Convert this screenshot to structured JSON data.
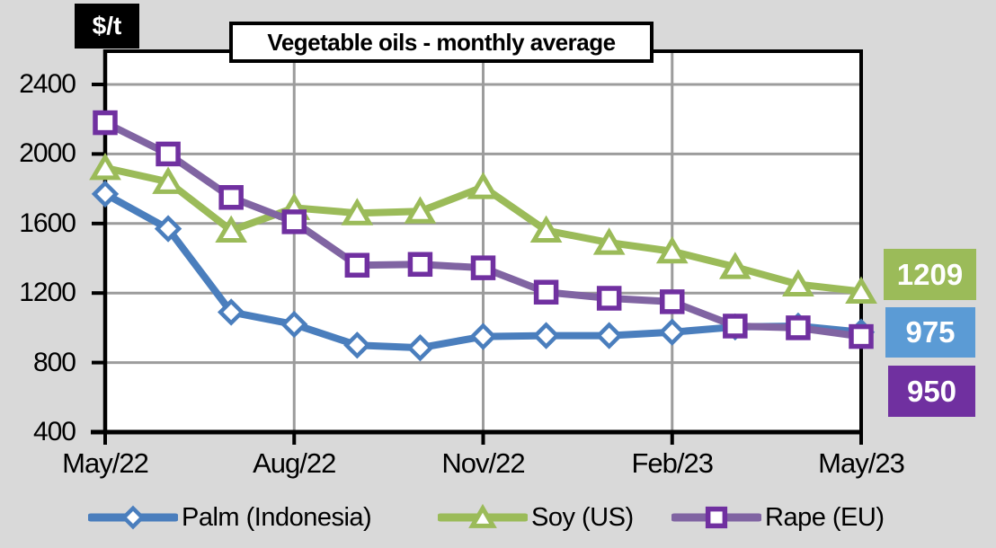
{
  "chart_data": {
    "type": "line",
    "title": "Vegetable oils - monthly average",
    "unit": "$/t",
    "x": [
      "May/22",
      "Jun/22",
      "Jul/22",
      "Aug/22",
      "Sep/22",
      "Oct/22",
      "Nov/22",
      "Dec/22",
      "Jan/23",
      "Feb/23",
      "Mar/23",
      "Apr/23",
      "May/23"
    ],
    "x_tick_indices": [
      0,
      3,
      6,
      9,
      12
    ],
    "x_tick_labels": [
      "May/22",
      "Aug/22",
      "Nov/22",
      "Feb/23",
      "May/23"
    ],
    "y_ticks": [
      400,
      800,
      1200,
      1600,
      2000,
      2400
    ],
    "ylim": [
      400,
      2590
    ],
    "grid": true,
    "legend_position": "bottom",
    "series": [
      {
        "name": "Palm (Indonesia)",
        "marker": "diamond",
        "color": "#4A7EBD",
        "values": [
          1770,
          1570,
          1090,
          1020,
          900,
          885,
          950,
          955,
          955,
          975,
          1005,
          1010,
          975
        ]
      },
      {
        "name": "Soy (US)",
        "marker": "triangle",
        "color": "#9BBB59",
        "values": [
          1920,
          1840,
          1560,
          1690,
          1660,
          1670,
          1810,
          1560,
          1490,
          1440,
          1350,
          1250,
          1209
        ]
      },
      {
        "name": "Rape (EU)",
        "marker": "square",
        "color": "#8064A2",
        "marker_color": "#7030A0",
        "values": [
          2180,
          2000,
          1750,
          1610,
          1360,
          1365,
          1345,
          1205,
          1170,
          1150,
          1010,
          1000,
          950
        ]
      }
    ],
    "end_labels": [
      {
        "value": "1209",
        "series": "Soy (US)",
        "bg": "#9BBB59"
      },
      {
        "value": "975",
        "series": "Palm (Indonesia)",
        "bg": "#5B9BD5"
      },
      {
        "value": "950",
        "series": "Rape (EU)",
        "bg": "#7030A0"
      }
    ],
    "colors": {
      "page_bg": "#D9D9D9",
      "plot_bg": "#FFFFFF",
      "gridline": "#9C9C9C",
      "axis": "#000000"
    }
  }
}
